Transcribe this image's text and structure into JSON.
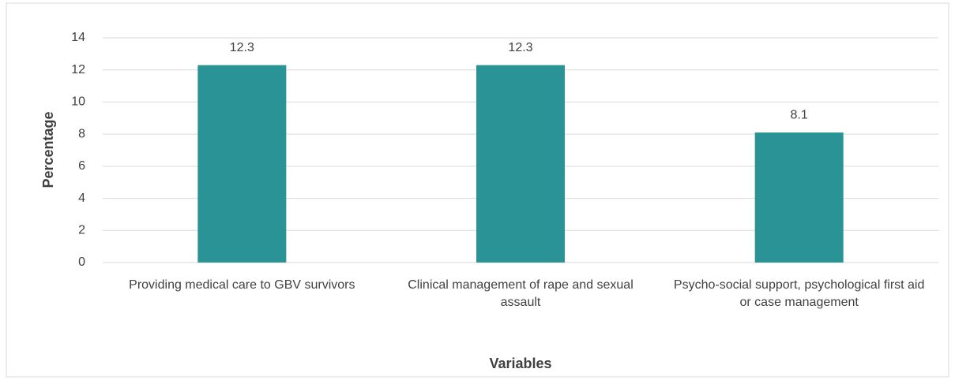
{
  "chart_data": {
    "type": "bar",
    "categories": [
      "Providing medical care to GBV survivors",
      "Clinical management of rape and sexual assault",
      "Psycho-social support, psychological first aid or case management"
    ],
    "values": [
      12.3,
      12.3,
      8.1
    ],
    "color": "#2a9396",
    "xlabel": "Variables",
    "ylabel": "Percentage",
    "ylim": [
      0,
      14
    ],
    "yticks": [
      0,
      2,
      4,
      6,
      8,
      10,
      12,
      14
    ],
    "grid": true
  }
}
